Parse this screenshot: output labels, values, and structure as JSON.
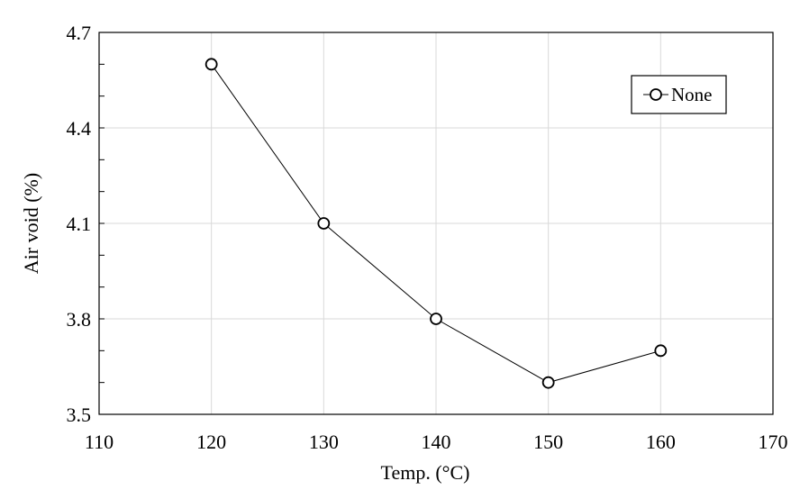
{
  "chart_data": {
    "type": "line",
    "title": "",
    "xlabel": "Temp. (°C)",
    "ylabel": "Air void (%)",
    "xlim": [
      110,
      170
    ],
    "ylim": [
      3.5,
      4.7
    ],
    "x_ticks": [
      110,
      120,
      130,
      140,
      150,
      160,
      170
    ],
    "y_ticks": [
      3.5,
      3.8,
      4.1,
      4.4,
      4.7
    ],
    "y_tick_labels": [
      "3.5",
      "3.8",
      "4.1",
      "4.4",
      "4.7"
    ],
    "y_minor_step": 0.1,
    "grid": true,
    "legend_position": "top-right",
    "series": [
      {
        "name": "None",
        "marker": "open-circle",
        "x": [
          120,
          130,
          140,
          150,
          160
        ],
        "y": [
          4.6,
          4.1,
          3.8,
          3.6,
          3.7
        ]
      }
    ]
  }
}
